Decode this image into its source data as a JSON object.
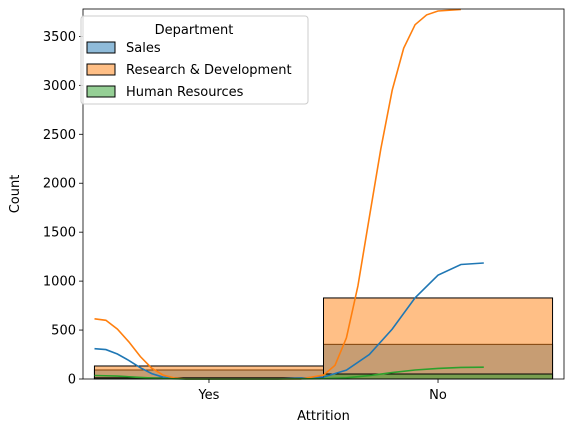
{
  "chart_data": {
    "type": "bar",
    "title": "",
    "xlabel": "Attrition",
    "ylabel": "Count",
    "categories": [
      "Yes",
      "No"
    ],
    "ylim": [
      0,
      3780
    ],
    "yticks": [
      0,
      500,
      1000,
      1500,
      2000,
      2500,
      3000,
      3500
    ],
    "grid": false,
    "stacked": false,
    "legend": {
      "title": "Department",
      "position": "top-left"
    },
    "series": [
      {
        "name": "Sales",
        "color": "#1f77b4",
        "values": [
          92,
          354
        ],
        "kde": [
          [
            -0.5,
            310
          ],
          [
            -0.45,
            300
          ],
          [
            -0.4,
            255
          ],
          [
            -0.35,
            190
          ],
          [
            -0.3,
            115
          ],
          [
            -0.25,
            55
          ],
          [
            -0.2,
            18
          ],
          [
            -0.15,
            4
          ],
          [
            -0.1,
            0
          ],
          [
            0.3,
            0
          ],
          [
            0.5,
            20
          ],
          [
            0.6,
            90
          ],
          [
            0.7,
            250
          ],
          [
            0.8,
            510
          ],
          [
            0.9,
            830
          ],
          [
            1.0,
            1060
          ],
          [
            1.1,
            1170
          ],
          [
            1.2,
            1185
          ]
        ]
      },
      {
        "name": "Research & Development",
        "color": "#ff7f0e",
        "values": [
          133,
          828
        ],
        "kde": [
          [
            -0.5,
            615
          ],
          [
            -0.45,
            600
          ],
          [
            -0.4,
            510
          ],
          [
            -0.35,
            380
          ],
          [
            -0.3,
            230
          ],
          [
            -0.25,
            110
          ],
          [
            -0.2,
            40
          ],
          [
            -0.15,
            10
          ],
          [
            -0.1,
            0
          ],
          [
            0.4,
            0
          ],
          [
            0.5,
            40
          ],
          [
            0.55,
            140
          ],
          [
            0.6,
            420
          ],
          [
            0.65,
            950
          ],
          [
            0.7,
            1650
          ],
          [
            0.75,
            2350
          ],
          [
            0.8,
            2950
          ],
          [
            0.85,
            3380
          ],
          [
            0.9,
            3620
          ],
          [
            0.95,
            3720
          ],
          [
            1.0,
            3760
          ],
          [
            1.1,
            3775
          ]
        ]
      },
      {
        "name": "Human Resources",
        "color": "#2ca02c",
        "values": [
          12,
          51
        ],
        "kde": [
          [
            -0.5,
            36
          ],
          [
            -0.4,
            30
          ],
          [
            -0.3,
            16
          ],
          [
            -0.2,
            4
          ],
          [
            -0.1,
            0
          ],
          [
            0.3,
            0
          ],
          [
            0.5,
            3
          ],
          [
            0.6,
            12
          ],
          [
            0.7,
            35
          ],
          [
            0.8,
            65
          ],
          [
            0.9,
            92
          ],
          [
            1.0,
            108
          ],
          [
            1.1,
            118
          ],
          [
            1.2,
            121
          ]
        ]
      }
    ]
  }
}
